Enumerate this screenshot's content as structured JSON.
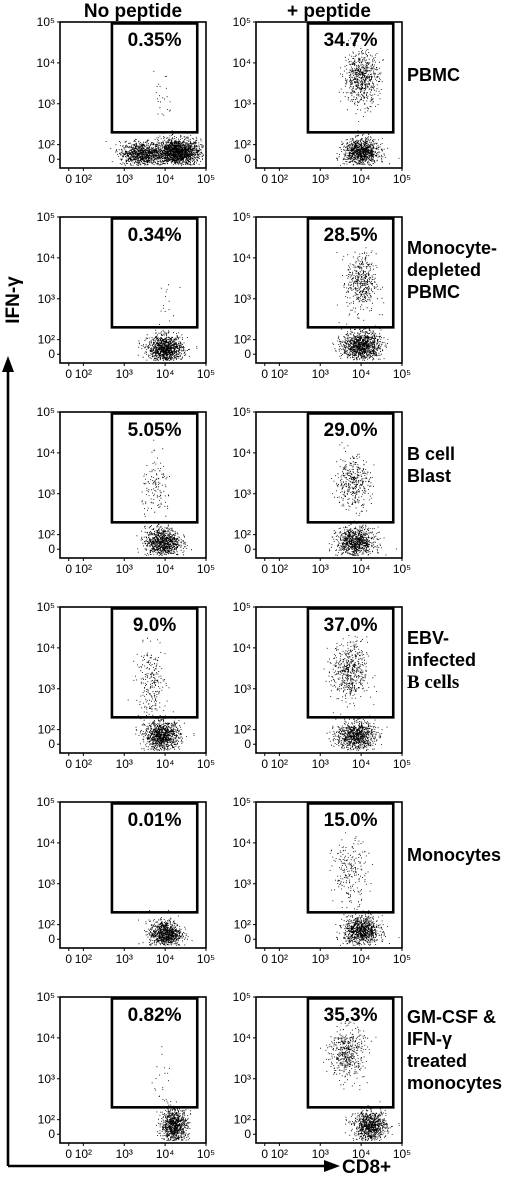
{
  "chart_data": {
    "type": "scatter",
    "column_titles": [
      "No peptide",
      "+ peptide"
    ],
    "x_axis_label": "CD8+",
    "y_axis_label": "IFN-γ",
    "x_ticks": [
      "0",
      "10²",
      "10³",
      "10⁴",
      "10⁵"
    ],
    "y_ticks": [
      "0",
      "10²",
      "10³",
      "10⁴",
      "10⁵"
    ],
    "x_range": [
      0,
      100000
    ],
    "y_range": [
      0,
      100000
    ],
    "scale": "biexponential",
    "gate": {
      "x_range": [
        500,
        100000
      ],
      "y_range": [
        200,
        100000
      ]
    },
    "rows": [
      {
        "label_lines": [
          "PBMC"
        ],
        "panels": [
          {
            "condition": "No peptide",
            "percent": "0.35%"
          },
          {
            "condition": "+ peptide",
            "percent": "34.7%"
          }
        ]
      },
      {
        "label_lines": [
          "Monocyte-",
          "depleted",
          "PBMC"
        ],
        "panels": [
          {
            "condition": "No peptide",
            "percent": "0.34%"
          },
          {
            "condition": "+ peptide",
            "percent": "28.5%"
          }
        ]
      },
      {
        "label_lines": [
          "B cell",
          "Blast"
        ],
        "panels": [
          {
            "condition": "No peptide",
            "percent": "5.05%"
          },
          {
            "condition": "+ peptide",
            "percent": "29.0%"
          }
        ]
      },
      {
        "label_lines": [
          "EBV-",
          "infected",
          "B cells"
        ],
        "panels": [
          {
            "condition": "No peptide",
            "percent": "9.0%"
          },
          {
            "condition": "+ peptide",
            "percent": "37.0%"
          }
        ]
      },
      {
        "label_lines": [
          "Monocytes"
        ],
        "panels": [
          {
            "condition": "No peptide",
            "percent": "0.01%"
          },
          {
            "condition": "+ peptide",
            "percent": "15.0%"
          }
        ]
      },
      {
        "label_lines": [
          "GM-CSF &",
          "IFN-γ",
          "treated",
          "monocytes"
        ],
        "panels": [
          {
            "condition": "No peptide",
            "percent": "0.82%"
          },
          {
            "condition": "+ peptide",
            "percent": "35.3%"
          }
        ]
      }
    ]
  }
}
